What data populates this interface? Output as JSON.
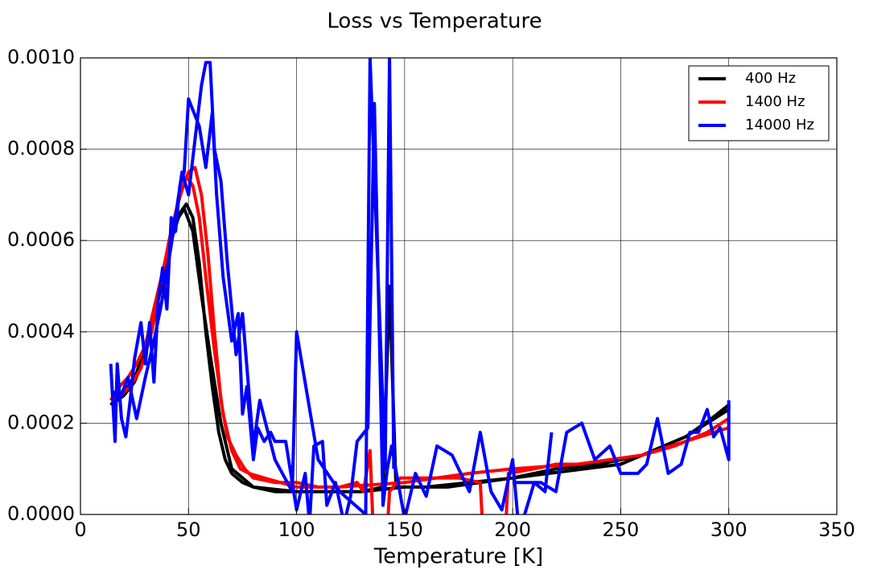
{
  "chart_data": {
    "type": "line",
    "title": "Loss vs Temperature",
    "xlabel": "Temperature [K]",
    "xlim": [
      0,
      350
    ],
    "xticks": [
      0,
      50,
      100,
      150,
      200,
      250,
      300,
      350
    ],
    "ylim": [
      0,
      0.001
    ],
    "yticks": [
      {
        "value": 0,
        "label": "0.0000"
      },
      {
        "value": 0.0002,
        "label": "0.0002"
      },
      {
        "value": 0.0004,
        "label": "0.0004"
      },
      {
        "value": 0.0006,
        "label": "0.0006"
      },
      {
        "value": 0.0008,
        "label": "0.0008"
      },
      {
        "value": 0.001,
        "label": "0.0010"
      }
    ],
    "grid": true,
    "legend": "upper right",
    "series": [
      {
        "name": "400 Hz",
        "color": "#000000",
        "x": [
          14,
          18,
          22,
          26,
          30,
          34,
          38,
          42,
          46,
          49,
          52,
          55,
          58,
          61,
          64,
          67,
          70,
          75,
          80,
          90,
          100,
          110,
          120,
          130,
          140,
          143,
          146,
          160,
          180,
          200,
          220,
          240,
          260,
          280,
          292,
          300,
          300,
          280,
          250,
          200,
          170,
          150,
          130,
          100,
          80,
          70,
          65,
          60,
          56,
          52,
          48,
          44,
          40,
          35,
          30,
          25,
          20,
          14
        ],
        "values": [
          0.00024,
          0.00026,
          0.00028,
          0.00031,
          0.00037,
          0.00045,
          0.00053,
          0.0006,
          0.00066,
          0.00068,
          0.00065,
          0.00055,
          0.0004,
          0.00028,
          0.00018,
          0.00012,
          9e-05,
          7e-05,
          6e-05,
          5e-05,
          5e-05,
          5e-05,
          5e-05,
          5e-05,
          6e-05,
          0.0005,
          6e-05,
          6e-05,
          7e-05,
          8e-05,
          0.0001,
          0.00011,
          0.00013,
          0.00017,
          0.00021,
          0.00024,
          0.00023,
          0.00017,
          0.00011,
          8e-05,
          6e-05,
          6e-05,
          5e-05,
          5e-05,
          6e-05,
          0.0001,
          0.0002,
          0.00035,
          0.00048,
          0.00062,
          0.00067,
          0.00064,
          0.00055,
          0.00045,
          0.00035,
          0.00029,
          0.00026,
          0.00024
        ]
      },
      {
        "name": "1400 Hz",
        "color": "#ff0000",
        "x": [
          14,
          18,
          22,
          26,
          30,
          34,
          38,
          42,
          46,
          50,
          53,
          56,
          59,
          62,
          65,
          68,
          72,
          76,
          80,
          90,
          100,
          110,
          120,
          128,
          131,
          134,
          136,
          140,
          143,
          148,
          160,
          175,
          185,
          188,
          195,
          198,
          210,
          220,
          230,
          245,
          260,
          275,
          290,
          300,
          300,
          280,
          260,
          230,
          200,
          180,
          150,
          120,
          100,
          85,
          78,
          74,
          70,
          66,
          62,
          58,
          55,
          52,
          49,
          45,
          41,
          37,
          33,
          28,
          23,
          18,
          15
        ],
        "values": [
          0.00025,
          0.00028,
          0.0003,
          0.00033,
          0.00037,
          0.00045,
          0.00053,
          0.00062,
          0.0007,
          0.00075,
          0.00076,
          0.0007,
          0.00057,
          0.0004,
          0.00025,
          0.00017,
          0.00013,
          0.0001,
          8e-05,
          7e-05,
          7e-05,
          6e-05,
          6e-05,
          7e-05,
          5e-05,
          0.00014,
          -0.0001,
          -0.0002,
          5e-05,
          8e-05,
          8e-05,
          8e-05,
          7e-05,
          -0.0002,
          -0.0002,
          9e-05,
          0.0001,
          0.00011,
          0.00011,
          0.00012,
          0.00013,
          0.00015,
          0.00018,
          0.00021,
          0.00019,
          0.00016,
          0.00013,
          0.00011,
          0.0001,
          9e-05,
          7e-05,
          6e-05,
          6e-05,
          8e-05,
          9e-05,
          0.0001,
          0.00014,
          0.00022,
          0.00036,
          0.00052,
          0.00065,
          0.00072,
          0.00074,
          0.00068,
          0.0006,
          0.0005,
          0.0004,
          0.00032,
          0.00028,
          0.00026,
          0.00025
        ]
      },
      {
        "name": "14000 Hz",
        "color": "#0000ff",
        "x": [
          14,
          16,
          17,
          19,
          21,
          23,
          25,
          28,
          30,
          32,
          34,
          36,
          38,
          40,
          42,
          44,
          46,
          48,
          50,
          55,
          58,
          61,
          63,
          66,
          70,
          73,
          75,
          77,
          80,
          82,
          85,
          88,
          90,
          95,
          100,
          104,
          106,
          108,
          112,
          114,
          118,
          122,
          125,
          128,
          133,
          136,
          140,
          142,
          144,
          150,
          155,
          160,
          165,
          172,
          180,
          185,
          190,
          195,
          200,
          203,
          210,
          215,
          218,
          null,
          200,
          213,
          220,
          225,
          232,
          238,
          245,
          250,
          258,
          262,
          267,
          272,
          278,
          282,
          286,
          290,
          293,
          296,
          300,
          300,
          null,
          145,
          143,
          141,
          134,
          132,
          120,
          110,
          100,
          98,
          90,
          83,
          80,
          75,
          72,
          68,
          65,
          62,
          60,
          58,
          56,
          53,
          50,
          47,
          43,
          40,
          37,
          34,
          30,
          26,
          22,
          18,
          15
        ],
        "values": [
          0.00033,
          0.00016,
          0.00033,
          0.00021,
          0.00017,
          0.00025,
          0.00034,
          0.00042,
          0.00033,
          0.00042,
          0.00029,
          0.00047,
          0.00054,
          0.00045,
          0.00065,
          0.00062,
          0.00072,
          0.00075,
          0.00091,
          0.00085,
          0.00076,
          0.00088,
          0.0007,
          0.00052,
          0.00038,
          0.00044,
          0.00022,
          0.00028,
          0.00012,
          0.00019,
          0.00016,
          0.00018,
          0.00016,
          0.00016,
          1e-05,
          9e-05,
          -2e-05,
          0.00015,
          0.00016,
          2e-05,
          7e-05,
          -2e-05,
          4e-05,
          0.00016,
          0.00019,
          0.0009,
          2e-05,
          0.0001,
          0.00015,
          -1e-05,
          9e-05,
          4e-05,
          0.00015,
          0.00013,
          5e-05,
          0.00018,
          5e-05,
          1e-05,
          0.00012,
          -4e-05,
          7e-05,
          5e-05,
          0.00018,
          null,
          7e-05,
          7e-05,
          5e-05,
          0.00018,
          0.0002,
          0.00012,
          0.00015,
          9e-05,
          9e-05,
          0.00011,
          0.00021,
          9e-05,
          0.00011,
          0.00018,
          0.00018,
          0.00023,
          0.00017,
          0.00019,
          0.00012,
          0.00025,
          null,
          0.0001,
          0.001,
          0.0001,
          0.001,
          0.0,
          5e-05,
          0.00012,
          0.0004,
          5e-05,
          0.00012,
          0.00025,
          0.00015,
          0.00044,
          0.00035,
          0.00055,
          0.00073,
          0.0008,
          0.00099,
          0.00099,
          0.00094,
          0.00082,
          0.0007,
          0.00075,
          0.00062,
          0.00053,
          0.00045,
          0.00038,
          0.0003,
          0.00021,
          0.0003,
          0.00025,
          0.00027
        ]
      }
    ]
  }
}
